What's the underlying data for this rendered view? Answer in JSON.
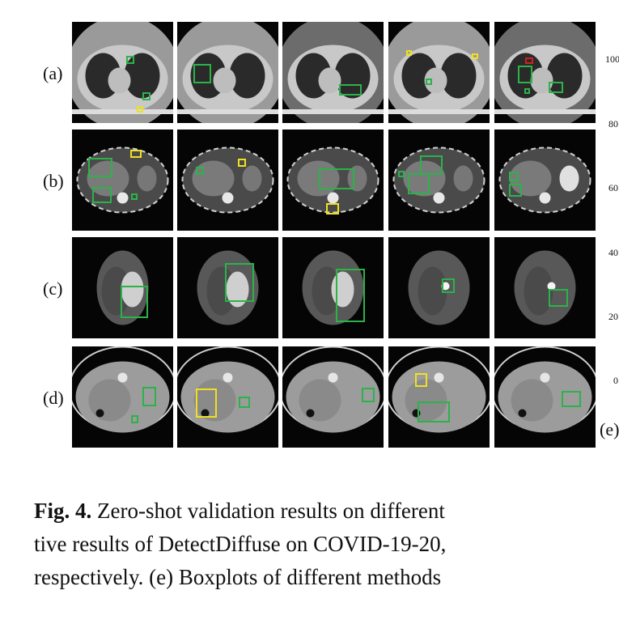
{
  "figure": {
    "row_labels": [
      "(a)",
      "(b)",
      "(c)",
      "(d)"
    ],
    "axis_ticks": [
      "100",
      "80",
      "60",
      "40",
      "20",
      "0"
    ],
    "panel_label": "(e)"
  },
  "caption": {
    "label": "Fig. 4.",
    "lines": [
      "Zero-shot validation results on different",
      "tive results of DetectDiffuse on COVID-19-20,",
      "respectively. (e) Boxplots of different methods"
    ]
  }
}
